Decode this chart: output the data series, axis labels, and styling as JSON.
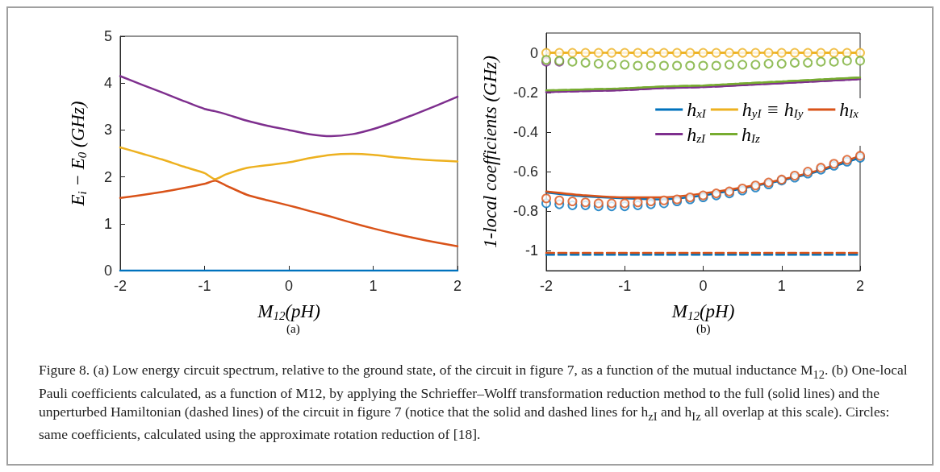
{
  "chart_data": [
    {
      "type": "line",
      "xlabel": "M$_{12}$(pH)",
      "ylabel": "E$_{i}$ − E$_{0}$ (GHz)",
      "annotations": [
        "(a)"
      ],
      "x": [
        -2,
        -1.75,
        -1.5,
        -1.25,
        -1,
        -0.875,
        -0.75,
        -0.5,
        -0.25,
        0,
        0.25,
        0.5,
        0.75,
        1,
        1.25,
        1.5,
        1.75,
        2
      ],
      "xlim": [
        -2,
        2
      ],
      "xticks": [
        -2,
        -1,
        0,
        1,
        2
      ],
      "ylim": [
        0,
        5
      ],
      "yticks": [
        0,
        1,
        2,
        3,
        4,
        5
      ],
      "line_style": "solid",
      "series": [
        {
          "color": "#0072bd",
          "values": [
            0,
            0,
            0,
            0,
            0,
            0,
            0,
            0,
            0,
            0,
            0,
            0,
            0,
            0,
            0,
            0,
            0,
            0
          ]
        },
        {
          "color": "#d95319",
          "values": [
            1.55,
            1.61,
            1.68,
            1.76,
            1.85,
            1.92,
            1.82,
            1.62,
            1.5,
            1.39,
            1.27,
            1.15,
            1.02,
            0.9,
            0.79,
            0.69,
            0.6,
            0.52
          ]
        },
        {
          "color": "#edb120",
          "values": [
            2.63,
            2.5,
            2.37,
            2.22,
            2.08,
            1.95,
            2.05,
            2.19,
            2.25,
            2.31,
            2.4,
            2.47,
            2.49,
            2.47,
            2.42,
            2.38,
            2.35,
            2.33
          ]
        },
        {
          "color": "#7e2f8e",
          "values": [
            4.15,
            3.97,
            3.8,
            3.62,
            3.45,
            3.4,
            3.34,
            3.2,
            3.09,
            3.0,
            2.91,
            2.87,
            2.91,
            3.02,
            3.17,
            3.34,
            3.52,
            3.71
          ]
        }
      ]
    },
    {
      "type": "line",
      "xlabel": "M$_{12}$(pH)",
      "ylabel": "1-local coefficients (GHz)",
      "legend": "top right",
      "annotations": [
        "(b)",
        "Figure 8. (a) Low energy circuit spectrum, relative to the ground state, of the circuit in figure 7, as a function of the mutual inductance M$_{12}$. (b) One-local Pauli coefficients calculated, as a function of M12, by applying the Schrieffer–Wolff transformation reduction method to the full (solid lines) and the unperturbed Hamiltonian (dashed lines) of the circuit in figure 7 (notice that the solid and dashed lines for h$_{zI}$ and h$_{Iz}$ all overlap at this scale). Circles: same coefficients, calculated using the approximate rotation reduction of [18]."
      ],
      "x": [
        -2,
        -1.5,
        -1,
        -0.5,
        0,
        0.5,
        1,
        1.5,
        2
      ],
      "xlim": [
        -2,
        2
      ],
      "xticks": [
        -2,
        -1,
        0,
        1,
        2
      ],
      "ylim": [
        -1.1,
        0.1
      ],
      "yticks": [
        -1,
        -0.8,
        -0.6,
        -0.4,
        -0.2,
        0
      ],
      "series": [
        {
          "color": "#edb120",
          "line_style": "dashed",
          "values": [
            0,
            0,
            0,
            0,
            0,
            0,
            0,
            0,
            0
          ]
        },
        {
          "color": "#0072bd",
          "line_style": "dashed",
          "values": [
            -1.02,
            -1.02,
            -1.02,
            -1.02,
            -1.02,
            -1.02,
            -1.02,
            -1.02,
            -1.02
          ]
        },
        {
          "color": "#d95319",
          "line_style": "dashed",
          "values": [
            -1.01,
            -1.01,
            -1.01,
            -1.01,
            -1.01,
            -1.01,
            -1.01,
            -1.01,
            -1.01
          ]
        },
        {
          "color": "#7e2f8e",
          "line_style": "dashed",
          "values": [
            -0.198,
            -0.193,
            -0.188,
            -0.178,
            -0.173,
            -0.163,
            -0.153,
            -0.143,
            -0.133
          ]
        },
        {
          "color": "#77ac30",
          "line_style": "dashed",
          "values": [
            -0.19,
            -0.185,
            -0.18,
            -0.17,
            -0.165,
            -0.155,
            -0.145,
            -0.135,
            -0.125
          ]
        },
        {
          "name": "h$_{xI}$",
          "color": "#0072bd",
          "line_style": "solid",
          "values": [
            -0.705,
            -0.725,
            -0.735,
            -0.74,
            -0.72,
            -0.685,
            -0.645,
            -0.595,
            -0.53
          ]
        },
        {
          "name": "h$_{yI}$ ≡ h$_{Iy}$",
          "color": "#edb120",
          "line_style": "solid",
          "values": [
            0,
            0,
            0,
            0,
            0,
            0,
            0,
            0,
            0
          ]
        },
        {
          "name": "h$_{Ix}$",
          "color": "#d95319",
          "line_style": "solid",
          "values": [
            -0.7,
            -0.72,
            -0.73,
            -0.73,
            -0.71,
            -0.68,
            -0.64,
            -0.59,
            -0.52
          ]
        },
        {
          "name": "h$_{zI}$",
          "color": "#7e2f8e",
          "line_style": "solid",
          "values": [
            -0.198,
            -0.193,
            -0.188,
            -0.178,
            -0.173,
            -0.163,
            -0.153,
            -0.143,
            -0.133
          ]
        },
        {
          "name": "h$_{Iz}$",
          "color": "#77ac30",
          "line_style": "solid",
          "values": [
            -0.19,
            -0.185,
            -0.18,
            -0.17,
            -0.165,
            -0.155,
            -0.145,
            -0.135,
            -0.125
          ]
        },
        {
          "type": "scatter",
          "marker": "circle",
          "color": "#0072bd",
          "x": [
            -2,
            -1.8333,
            -1.6667,
            -1.5,
            -1.3333,
            -1.1667,
            -1,
            -0.8333,
            -0.6667,
            -0.5,
            -0.3333,
            -0.1667,
            0,
            0.1667,
            0.3333,
            0.5,
            0.6667,
            0.8333,
            1,
            1.1667,
            1.3333,
            1.5,
            1.6667,
            1.8333,
            2
          ],
          "values": [
            -0.76,
            -0.765,
            -0.77,
            -0.77,
            -0.775,
            -0.775,
            -0.775,
            -0.77,
            -0.765,
            -0.76,
            -0.75,
            -0.74,
            -0.73,
            -0.72,
            -0.71,
            -0.695,
            -0.68,
            -0.665,
            -0.645,
            -0.63,
            -0.61,
            -0.59,
            -0.57,
            -0.55,
            -0.53
          ]
        },
        {
          "type": "scatter",
          "marker": "circle",
          "color": "#d95319",
          "x": [
            -2,
            -1.8333,
            -1.6667,
            -1.5,
            -1.3333,
            -1.1667,
            -1,
            -0.8333,
            -0.6667,
            -0.5,
            -0.3333,
            -0.1667,
            0,
            0.1667,
            0.3333,
            0.5,
            0.6667,
            0.8333,
            1,
            1.1667,
            1.3333,
            1.5,
            1.6667,
            1.8333,
            2
          ],
          "values": [
            -0.735,
            -0.745,
            -0.75,
            -0.755,
            -0.76,
            -0.76,
            -0.76,
            -0.755,
            -0.75,
            -0.745,
            -0.74,
            -0.73,
            -0.72,
            -0.71,
            -0.7,
            -0.685,
            -0.67,
            -0.655,
            -0.64,
            -0.62,
            -0.6,
            -0.58,
            -0.56,
            -0.54,
            -0.52
          ]
        },
        {
          "type": "scatter",
          "marker": "circle",
          "color": "#edb120",
          "x": [
            -2,
            -1.8333,
            -1.6667,
            -1.5,
            -1.3333,
            -1.1667,
            -1,
            -0.8333,
            -0.6667,
            -0.5,
            -0.3333,
            -0.1667,
            0,
            0.1667,
            0.3333,
            0.5,
            0.6667,
            0.8333,
            1,
            1.1667,
            1.3333,
            1.5,
            1.6667,
            1.8333,
            2
          ],
          "values": [
            0,
            0,
            0,
            0,
            0,
            0,
            0,
            0,
            0,
            0,
            0,
            0,
            0,
            0,
            0,
            0,
            0,
            0,
            0,
            0,
            0,
            0,
            0,
            0,
            0
          ]
        },
        {
          "type": "scatter",
          "marker": "circle",
          "color": "#7e2f8e",
          "x": [
            -2,
            -1.8333
          ],
          "values": [
            -0.045,
            -0.045
          ]
        },
        {
          "type": "scatter",
          "marker": "circle",
          "color": "#77ac30",
          "x": [
            -2,
            -1.8333,
            -1.6667,
            -1.5,
            -1.3333,
            -1.1667,
            -1,
            -0.8333,
            -0.6667,
            -0.5,
            -0.3333,
            -0.1667,
            0,
            0.1667,
            0.3333,
            0.5,
            0.6667,
            0.8333,
            1,
            1.1667,
            1.3333,
            1.5,
            1.6667,
            1.8333,
            2
          ],
          "values": [
            -0.035,
            -0.04,
            -0.045,
            -0.05,
            -0.055,
            -0.06,
            -0.06,
            -0.065,
            -0.065,
            -0.065,
            -0.065,
            -0.065,
            -0.065,
            -0.065,
            -0.06,
            -0.06,
            -0.06,
            -0.055,
            -0.055,
            -0.05,
            -0.05,
            -0.045,
            -0.045,
            -0.04,
            -0.04
          ]
        }
      ]
    }
  ]
}
